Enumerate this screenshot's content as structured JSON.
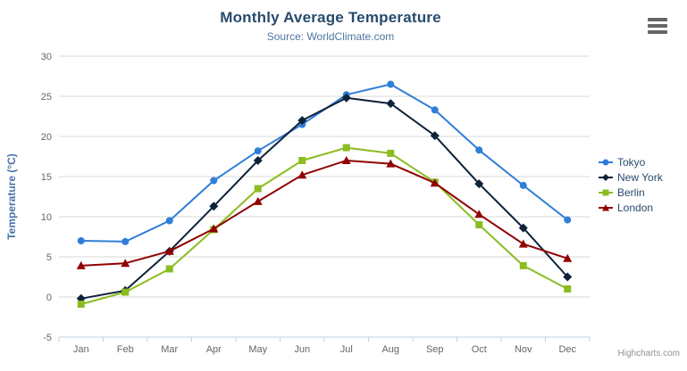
{
  "chart_data": {
    "type": "line",
    "title": "Monthly Average Temperature",
    "subtitle": "Source: WorldClimate.com",
    "categories": [
      "Jan",
      "Feb",
      "Mar",
      "Apr",
      "May",
      "Jun",
      "Jul",
      "Aug",
      "Sep",
      "Oct",
      "Nov",
      "Dec"
    ],
    "series": [
      {
        "name": "Tokyo",
        "color": "#2f7ed8",
        "marker": "circle",
        "values": [
          7.0,
          6.9,
          9.5,
          14.5,
          18.2,
          21.5,
          25.2,
          26.5,
          23.3,
          18.3,
          13.9,
          9.6
        ]
      },
      {
        "name": "New York",
        "color": "#0d233a",
        "marker": "diamond",
        "values": [
          -0.2,
          0.8,
          5.7,
          11.3,
          17.0,
          22.0,
          24.8,
          24.1,
          20.1,
          14.1,
          8.6,
          2.5
        ]
      },
      {
        "name": "Berlin",
        "color": "#8bbc21",
        "marker": "square",
        "values": [
          -0.9,
          0.6,
          3.5,
          8.4,
          13.5,
          17.0,
          18.6,
          17.9,
          14.3,
          9.0,
          3.9,
          1.0
        ]
      },
      {
        "name": "London",
        "color": "#910000",
        "marker": "triangle",
        "values": [
          3.9,
          4.2,
          5.7,
          8.5,
          11.9,
          15.2,
          17.0,
          16.6,
          14.2,
          10.3,
          6.6,
          4.8
        ]
      }
    ],
    "xlabel": "",
    "ylabel": "Temperature (°C)",
    "ylim": [
      -5,
      30
    ],
    "ytick_step": 5,
    "grid": true,
    "legend_position": "right"
  },
  "colors": {
    "title": "#274b6d",
    "subtitle": "#4d759e",
    "axis_title": "#4572a7",
    "tick_label": "#666666",
    "gridline": "#d8d8d8",
    "axis_line": "#c0d0e0",
    "credits": "#909090"
  },
  "credits": "Highcharts.com",
  "menu": {
    "icon": "hamburger-icon"
  }
}
